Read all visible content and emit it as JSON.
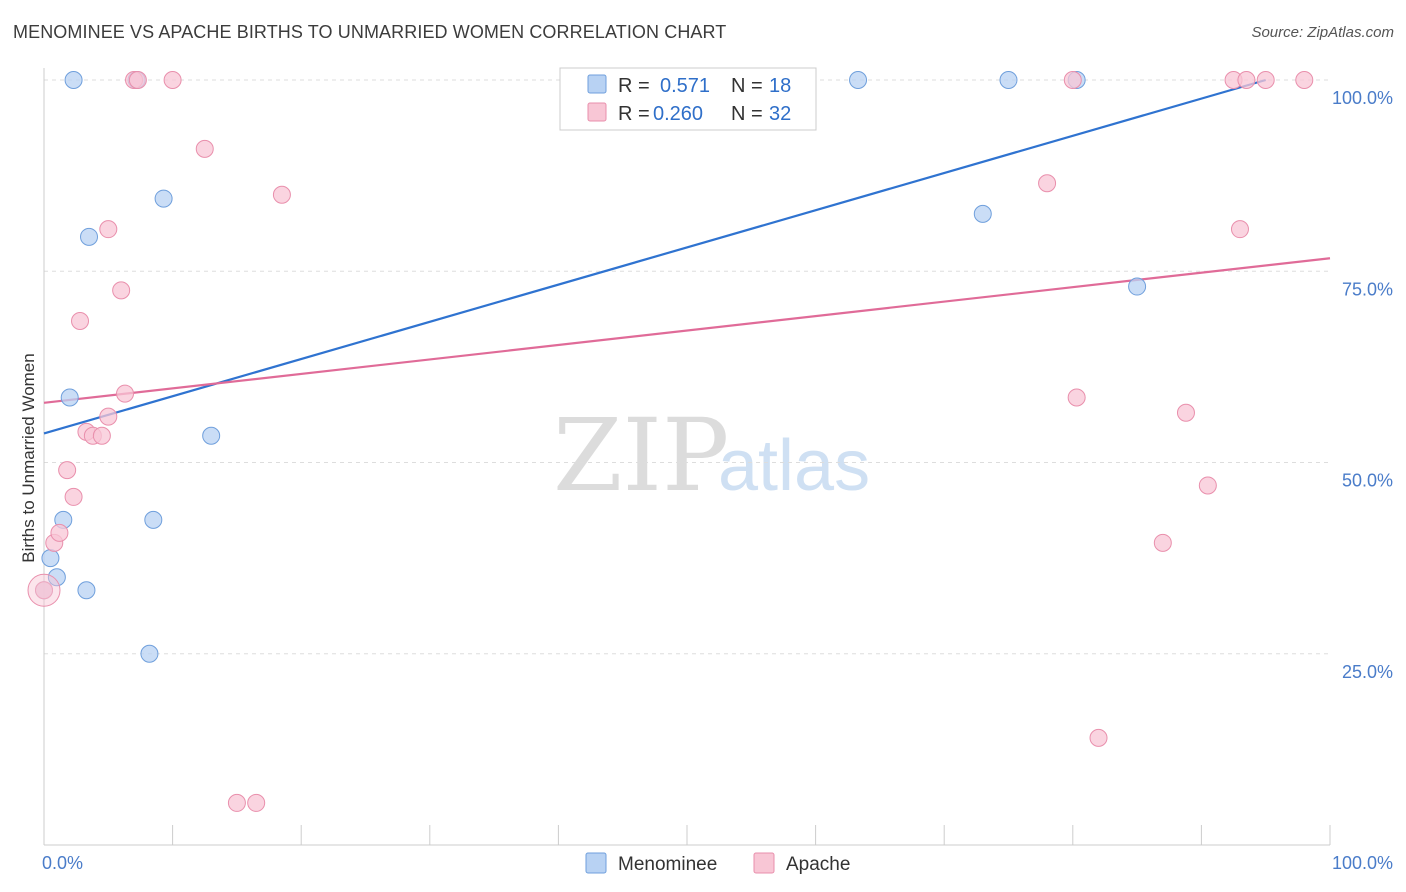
{
  "header": {
    "title": "MENOMINEE VS APACHE BIRTHS TO UNMARRIED WOMEN CORRELATION CHART",
    "source": "Source: ZipAtlas.com"
  },
  "watermark": {
    "zip": "ZIP",
    "atlas": "atlas"
  },
  "colors": {
    "menominee_fill": "#b8d2f3",
    "menominee_stroke": "#6f9fdc",
    "menominee_line": "#2f73d0",
    "apache_fill": "#f8c6d5",
    "apache_stroke": "#e98fac",
    "apache_line": "#e06b98",
    "grid": "#dddddd",
    "tick_text": "#4a7cc9"
  },
  "legend": {
    "rows": [
      {
        "r_label": "R =",
        "r_value": "0.571",
        "n_label": "N =",
        "n_value": "18"
      },
      {
        "r_label": "R =",
        "r_value": "0.260",
        "n_label": "N =",
        "n_value": "32"
      }
    ]
  },
  "chart_data": {
    "type": "scatter",
    "title": "MENOMINEE VS APACHE BIRTHS TO UNMARRIED WOMEN CORRELATION CHART",
    "xlabel": "",
    "ylabel": "Births to Unmarried Women",
    "xlim": [
      0,
      100
    ],
    "ylim": [
      0,
      100
    ],
    "x_tick_labels": [
      "0.0%",
      "100.0%"
    ],
    "y_tick_labels": [
      "25.0%",
      "50.0%",
      "75.0%",
      "100.0%"
    ],
    "y_ticks": [
      25,
      50,
      75,
      100
    ],
    "grid": true,
    "legend_position": "top-center",
    "series": [
      {
        "name": "Menominee",
        "points": [
          [
            0,
            33.3
          ],
          [
            0.5,
            37.5
          ],
          [
            1,
            35
          ],
          [
            1.5,
            42.5
          ],
          [
            2,
            58.5
          ],
          [
            2.3,
            100
          ],
          [
            3.3,
            33.3
          ],
          [
            3.5,
            79.5
          ],
          [
            7.2,
            100
          ],
          [
            8.2,
            25
          ],
          [
            8.5,
            42.5
          ],
          [
            9.3,
            84.5
          ],
          [
            13,
            53.5
          ],
          [
            63.3,
            100
          ],
          [
            73,
            82.5
          ],
          [
            75,
            100
          ],
          [
            80.3,
            100
          ],
          [
            85,
            73
          ]
        ],
        "trend": {
          "x0": 0,
          "y0": 53.8,
          "x1": 95,
          "y1": 100
        }
      },
      {
        "name": "Apache",
        "points": [
          [
            0,
            33.3
          ],
          [
            0.8,
            39.5
          ],
          [
            1.2,
            40.8
          ],
          [
            1.8,
            49
          ],
          [
            2.3,
            45.5
          ],
          [
            2.8,
            68.5
          ],
          [
            3.3,
            54
          ],
          [
            3.8,
            53.5
          ],
          [
            4.5,
            53.5
          ],
          [
            5,
            56
          ],
          [
            5.0,
            80.5
          ],
          [
            6,
            72.5
          ],
          [
            6.3,
            59
          ],
          [
            7,
            100
          ],
          [
            7.3,
            100
          ],
          [
            10,
            100
          ],
          [
            12.5,
            91
          ],
          [
            15,
            5.5
          ],
          [
            16.5,
            5.5
          ],
          [
            18.5,
            85
          ],
          [
            78,
            86.5
          ],
          [
            80,
            100
          ],
          [
            80.3,
            58.5
          ],
          [
            82,
            14
          ],
          [
            87,
            39.5
          ],
          [
            88.8,
            56.5
          ],
          [
            90.5,
            47
          ],
          [
            92.5,
            100
          ],
          [
            93,
            80.5
          ],
          [
            93.5,
            100
          ],
          [
            95,
            100
          ],
          [
            98,
            100
          ]
        ],
        "trend": {
          "x0": 0,
          "y0": 57.8,
          "x1": 100,
          "y1": 76.7
        }
      }
    ]
  },
  "bottom_legend": {
    "items": [
      "Menominee",
      "Apache"
    ]
  }
}
